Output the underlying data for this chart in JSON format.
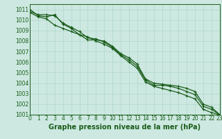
{
  "title": "Graphe pression niveau de la mer (hPa)",
  "bg_color": "#cce8e0",
  "grid_color": "#aad4c8",
  "line_color": "#1a5c1a",
  "xlim": [
    0,
    23
  ],
  "ylim": [
    1001,
    1011.5
  ],
  "xticks": [
    0,
    1,
    2,
    3,
    4,
    5,
    6,
    7,
    8,
    9,
    10,
    11,
    12,
    13,
    14,
    15,
    16,
    17,
    18,
    19,
    20,
    21,
    22,
    23
  ],
  "yticks": [
    1001,
    1002,
    1003,
    1004,
    1005,
    1006,
    1007,
    1008,
    1009,
    1010,
    1011
  ],
  "series": [
    [
      1011.0,
      1010.4,
      1010.3,
      1010.5,
      1009.6,
      1009.2,
      1008.6,
      1008.1,
      1008.1,
      1008.0,
      1007.5,
      1006.8,
      1006.4,
      1005.8,
      1004.4,
      1004.0,
      1003.9,
      1003.8,
      1003.7,
      1003.5,
      1003.2,
      1002.0,
      1001.7,
      1001.0
    ],
    [
      1010.8,
      1010.5,
      1010.5,
      1010.4,
      1009.7,
      1009.3,
      1008.9,
      1008.3,
      1008.2,
      1007.9,
      1007.4,
      1006.7,
      1006.2,
      1005.6,
      1004.3,
      1003.8,
      1003.8,
      1003.7,
      1003.5,
      1003.2,
      1002.9,
      1001.8,
      1001.5,
      1001.0
    ],
    [
      1010.7,
      1010.3,
      1010.1,
      1009.5,
      1009.2,
      1008.9,
      1008.6,
      1008.4,
      1008.0,
      1007.7,
      1007.3,
      1006.6,
      1006.0,
      1005.4,
      1004.1,
      1003.7,
      1003.5,
      1003.3,
      1003.1,
      1002.8,
      1002.5,
      1001.5,
      1001.2,
      1001.0
    ]
  ],
  "tick_fontsize": 5.5,
  "xlabel_fontsize": 7,
  "marker_size": 3,
  "linewidth": 0.9
}
